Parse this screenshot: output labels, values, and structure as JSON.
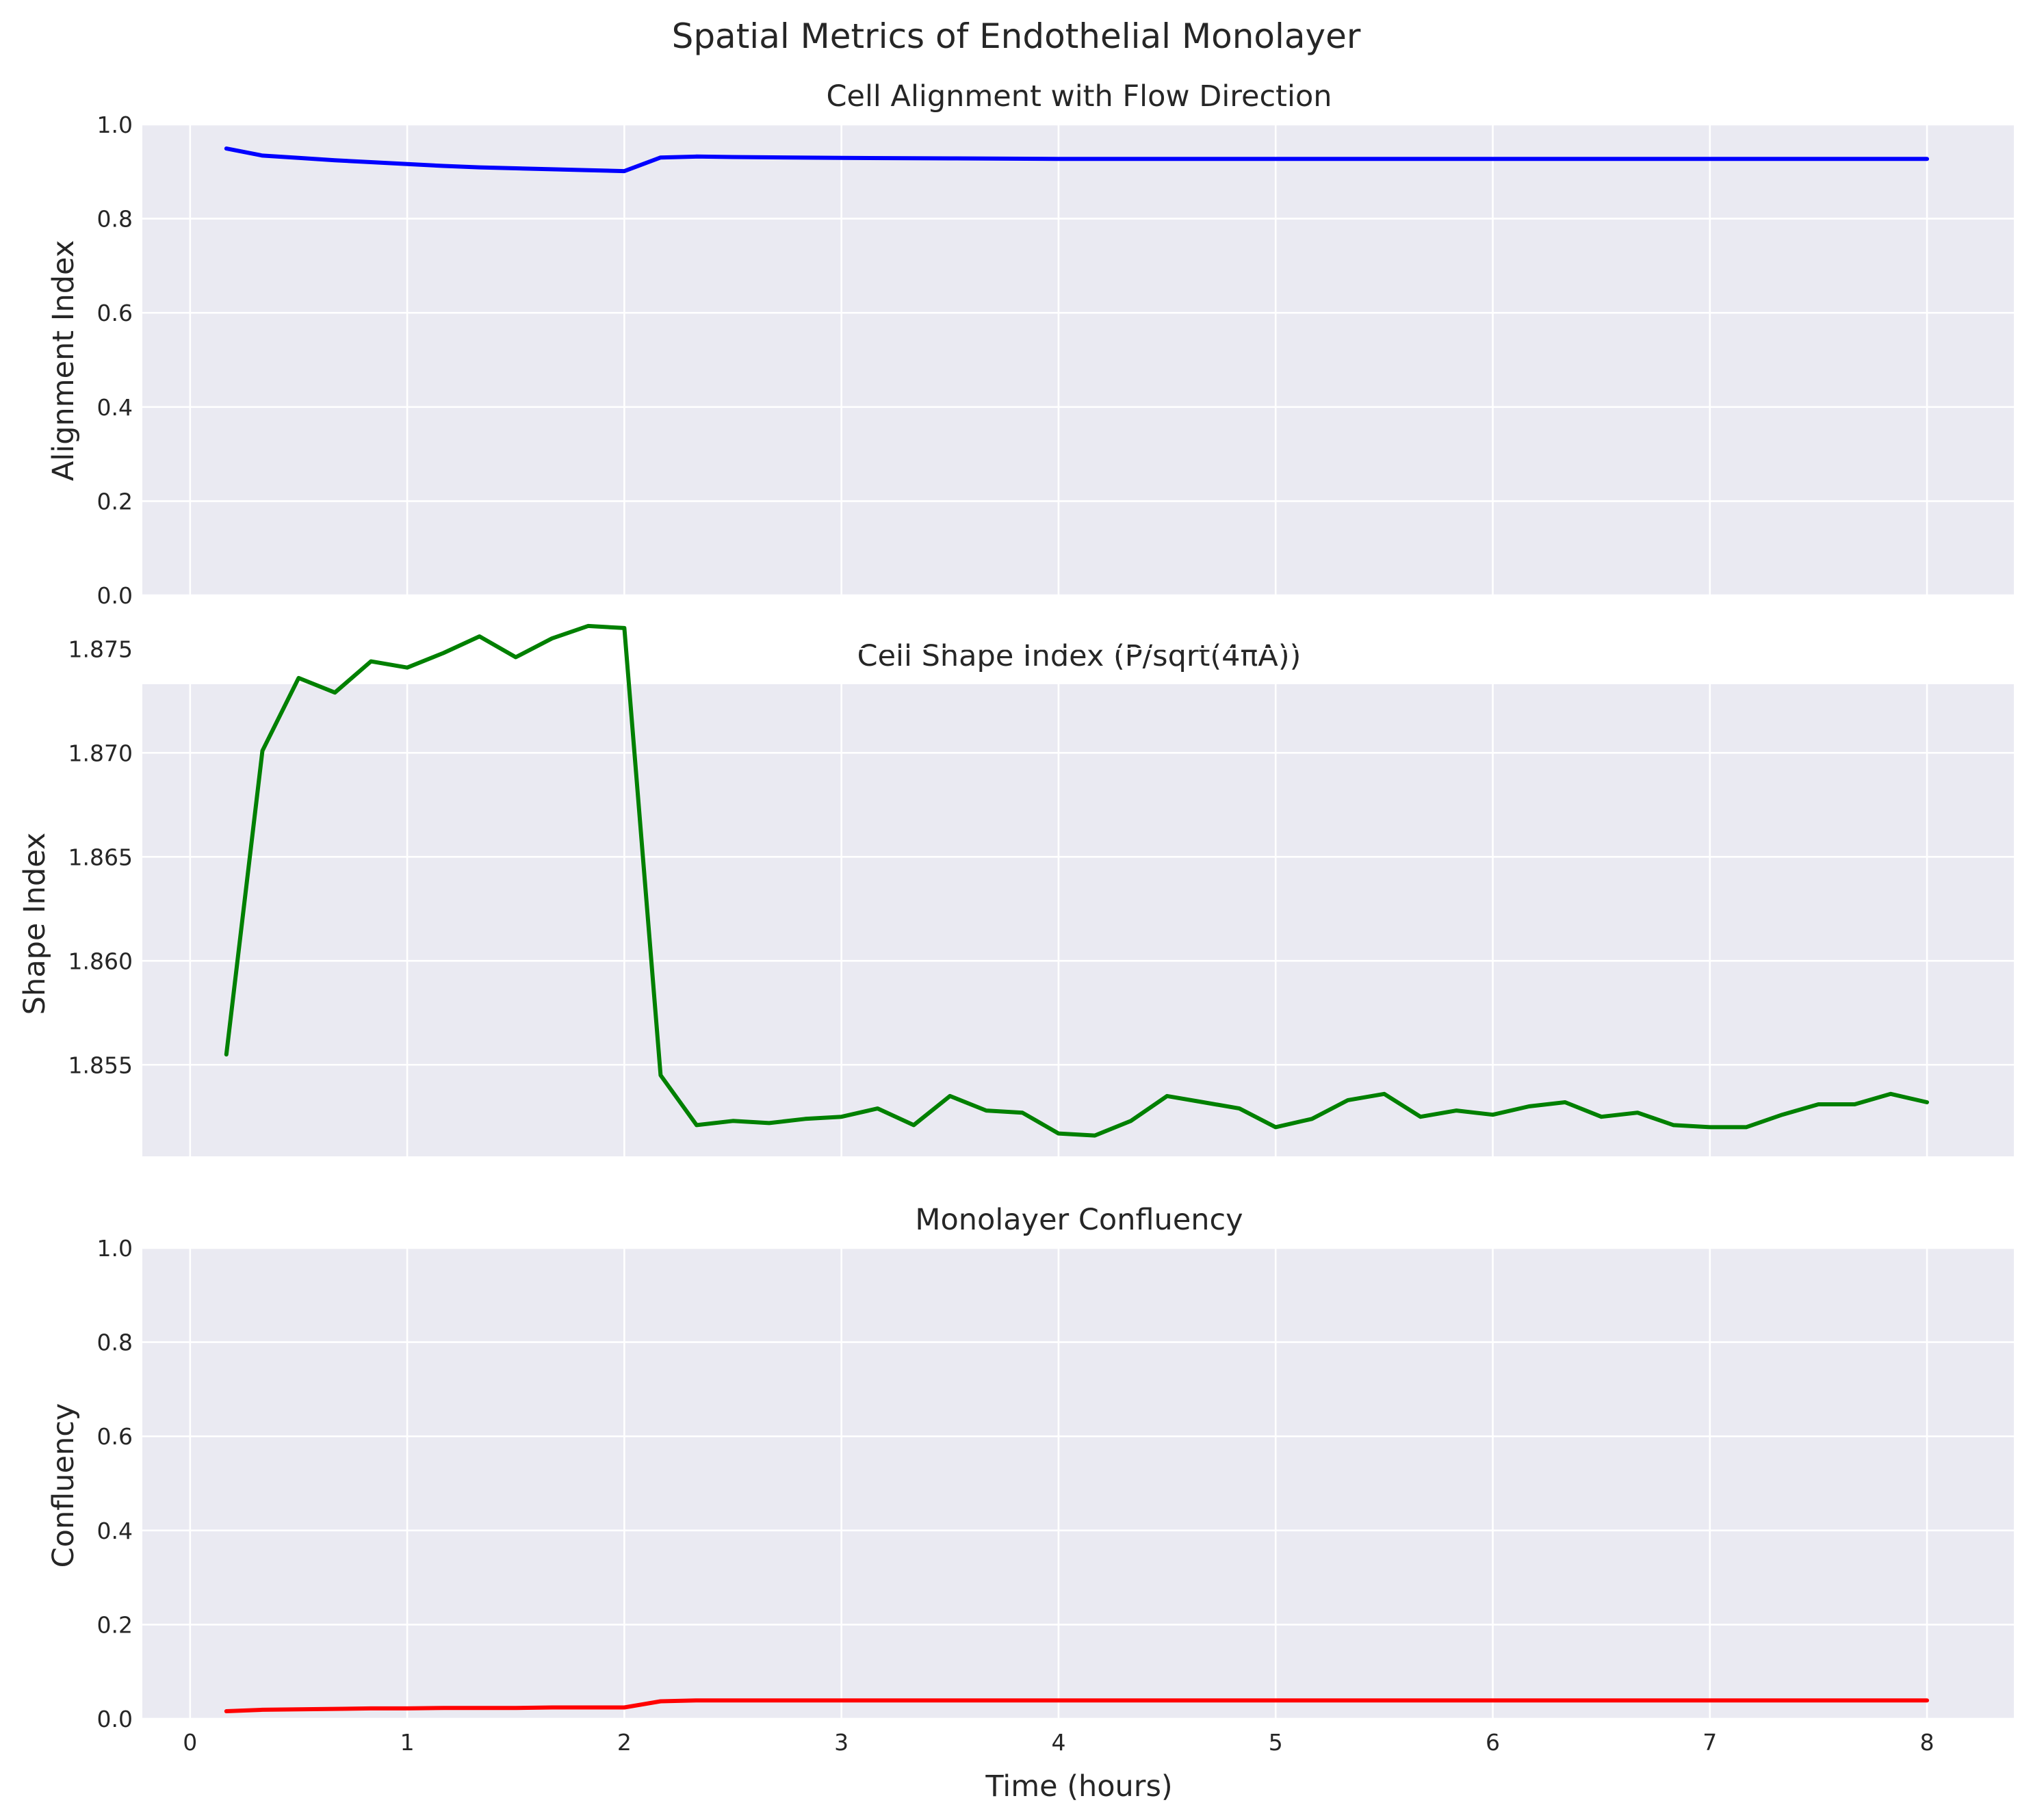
{
  "figure": {
    "title": "Spatial Metrics of Endothelial Monolayer",
    "xlabel": "Time (hours)",
    "xticks": [
      0,
      1,
      2,
      3,
      4,
      5,
      6,
      7,
      8
    ],
    "xlim": [
      -0.22,
      8.4
    ]
  },
  "chart_data": [
    {
      "type": "line",
      "title": "Cell Alignment with Flow Direction",
      "xlabel": "",
      "ylabel": "Alignment Index",
      "ylim": [
        0.0,
        1.0
      ],
      "yticks": [
        "0.0",
        "0.2",
        "0.4",
        "0.6",
        "0.8",
        "1.0"
      ],
      "ytick_values": [
        0.0,
        0.2,
        0.4,
        0.6,
        0.8,
        1.0
      ],
      "grid": true,
      "color": "#0000ff",
      "x": [
        0.167,
        0.333,
        0.5,
        0.667,
        0.833,
        1.0,
        1.167,
        1.333,
        1.5,
        1.667,
        1.833,
        2.0,
        2.167,
        2.333,
        2.5,
        3.0,
        3.5,
        4.0,
        4.5,
        5.0,
        5.5,
        6.0,
        6.5,
        7.0,
        7.5,
        8.0
      ],
      "values": [
        0.949,
        0.934,
        0.929,
        0.924,
        0.92,
        0.916,
        0.912,
        0.909,
        0.907,
        0.905,
        0.903,
        0.901,
        0.93,
        0.932,
        0.931,
        0.929,
        0.928,
        0.927,
        0.927,
        0.927,
        0.927,
        0.927,
        0.927,
        0.927,
        0.927,
        0.927
      ]
    },
    {
      "type": "line",
      "title": "Cell Shape Index (P/sqrt(4πA))",
      "xlabel": "",
      "ylabel": "Shape Index",
      "ylim": [
        1.8506,
        1.8733
      ],
      "yticks": [
        "1.855",
        "1.860",
        "1.865",
        "1.870",
        "1.875"
      ],
      "ytick_values": [
        1.855,
        1.86,
        1.865,
        1.87,
        1.875
      ],
      "grid": true,
      "color": "#008000",
      "x": [
        0.167,
        0.333,
        0.5,
        0.667,
        0.833,
        1.0,
        1.167,
        1.333,
        1.5,
        1.667,
        1.833,
        2.0,
        2.167,
        2.333,
        2.5,
        2.667,
        2.833,
        3.0,
        3.167,
        3.333,
        3.5,
        3.667,
        3.833,
        4.0,
        4.167,
        4.333,
        4.5,
        4.667,
        4.833,
        5.0,
        5.167,
        5.333,
        5.5,
        5.667,
        5.833,
        6.0,
        6.167,
        6.333,
        6.5,
        6.667,
        6.833,
        7.0,
        7.167,
        7.333,
        7.5,
        7.667,
        7.833,
        8.0
      ],
      "values": [
        1.8555,
        1.8701,
        1.8736,
        1.8729,
        1.8744,
        1.8741,
        1.8748,
        1.8756,
        1.8746,
        1.8755,
        1.8761,
        1.876,
        1.8545,
        1.8521,
        1.8523,
        1.8522,
        1.8524,
        1.8525,
        1.8529,
        1.8521,
        1.8535,
        1.8528,
        1.8527,
        1.8517,
        1.8516,
        1.8523,
        1.8535,
        1.8532,
        1.8529,
        1.852,
        1.8524,
        1.8533,
        1.8536,
        1.8525,
        1.8528,
        1.8526,
        1.853,
        1.8532,
        1.8525,
        1.8527,
        1.8521,
        1.852,
        1.852,
        1.8526,
        1.8531,
        1.8531,
        1.8536,
        1.8532
      ]
    },
    {
      "type": "line",
      "title": "Monolayer Confluency",
      "xlabel": "Time (hours)",
      "ylabel": "Confluency",
      "ylim": [
        0.0,
        1.0
      ],
      "yticks": [
        "0.0",
        "0.2",
        "0.4",
        "0.6",
        "0.8",
        "1.0"
      ],
      "ytick_values": [
        0.0,
        0.2,
        0.4,
        0.6,
        0.8,
        1.0
      ],
      "grid": true,
      "color": "#ff0000",
      "x": [
        0.167,
        0.333,
        0.5,
        0.667,
        0.833,
        1.0,
        1.167,
        1.333,
        1.5,
        1.667,
        1.833,
        2.0,
        2.167,
        2.333,
        2.5,
        3.0,
        3.5,
        4.0,
        4.5,
        5.0,
        5.5,
        6.0,
        6.5,
        7.0,
        7.5,
        8.0
      ],
      "values": [
        0.016,
        0.019,
        0.02,
        0.021,
        0.022,
        0.022,
        0.023,
        0.023,
        0.023,
        0.024,
        0.024,
        0.024,
        0.037,
        0.039,
        0.039,
        0.039,
        0.039,
        0.039,
        0.039,
        0.039,
        0.039,
        0.039,
        0.039,
        0.039,
        0.039,
        0.039
      ]
    }
  ]
}
